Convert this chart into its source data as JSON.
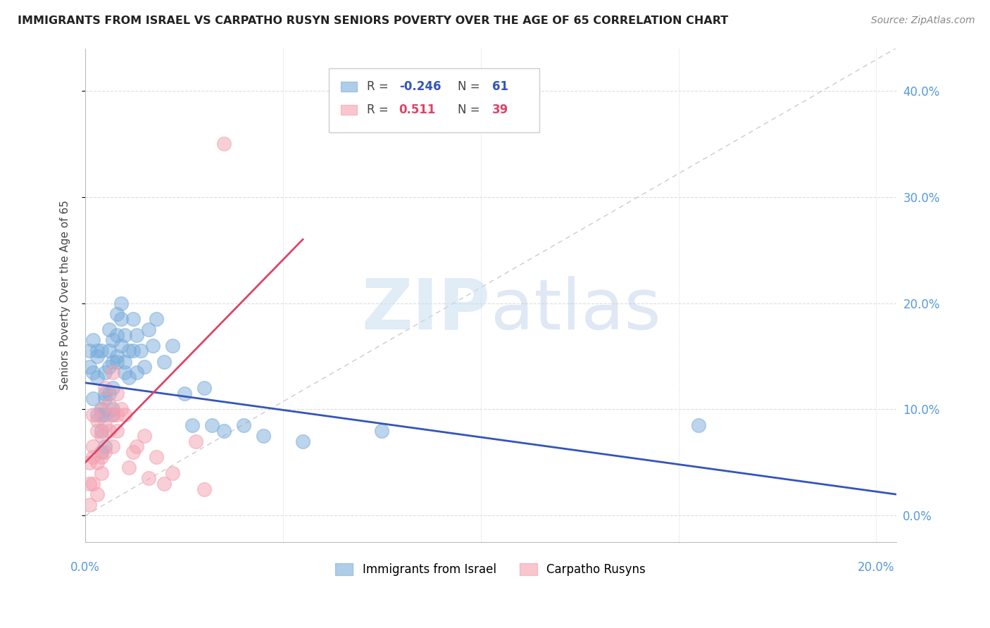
{
  "title": "IMMIGRANTS FROM ISRAEL VS CARPATHO RUSYN SENIORS POVERTY OVER THE AGE OF 65 CORRELATION CHART",
  "source": "Source: ZipAtlas.com",
  "ylabel": "Seniors Poverty Over the Age of 65",
  "legend_label_blue": "Immigrants from Israel",
  "legend_label_pink": "Carpatho Rusyns",
  "watermark_zip": "ZIP",
  "watermark_atlas": "atlas",
  "background_color": "#ffffff",
  "blue_color": "#7aaddb",
  "pink_color": "#f5a0b0",
  "blue_line_color": "#3355bb",
  "pink_line_color": "#dd4466",
  "diag_line_color": "#cccccc",
  "grid_color": "#dddddd",
  "title_color": "#222222",
  "source_color": "#888888",
  "axis_label_color": "#5599dd",
  "blue_scatter": {
    "x": [
      0.001,
      0.001,
      0.002,
      0.002,
      0.002,
      0.003,
      0.003,
      0.003,
      0.003,
      0.004,
      0.004,
      0.004,
      0.004,
      0.004,
      0.005,
      0.005,
      0.005,
      0.005,
      0.005,
      0.006,
      0.006,
      0.006,
      0.006,
      0.007,
      0.007,
      0.007,
      0.007,
      0.007,
      0.008,
      0.008,
      0.008,
      0.008,
      0.009,
      0.009,
      0.009,
      0.01,
      0.01,
      0.01,
      0.011,
      0.011,
      0.012,
      0.012,
      0.013,
      0.013,
      0.014,
      0.015,
      0.016,
      0.017,
      0.018,
      0.02,
      0.022,
      0.025,
      0.027,
      0.03,
      0.032,
      0.035,
      0.04,
      0.045,
      0.055,
      0.075,
      0.155
    ],
    "y": [
      0.155,
      0.14,
      0.165,
      0.135,
      0.11,
      0.155,
      0.15,
      0.13,
      0.095,
      0.155,
      0.1,
      0.08,
      0.095,
      0.06,
      0.135,
      0.11,
      0.115,
      0.065,
      0.095,
      0.175,
      0.14,
      0.115,
      0.155,
      0.165,
      0.145,
      0.12,
      0.1,
      0.095,
      0.19,
      0.17,
      0.15,
      0.145,
      0.2,
      0.185,
      0.16,
      0.145,
      0.17,
      0.135,
      0.155,
      0.13,
      0.185,
      0.155,
      0.17,
      0.135,
      0.155,
      0.14,
      0.175,
      0.16,
      0.185,
      0.145,
      0.16,
      0.115,
      0.085,
      0.12,
      0.085,
      0.08,
      0.085,
      0.075,
      0.07,
      0.08,
      0.085
    ]
  },
  "pink_scatter": {
    "x": [
      0.001,
      0.001,
      0.001,
      0.002,
      0.002,
      0.002,
      0.002,
      0.003,
      0.003,
      0.003,
      0.003,
      0.004,
      0.004,
      0.004,
      0.004,
      0.005,
      0.005,
      0.005,
      0.006,
      0.006,
      0.007,
      0.007,
      0.007,
      0.008,
      0.008,
      0.008,
      0.009,
      0.01,
      0.011,
      0.012,
      0.013,
      0.015,
      0.016,
      0.018,
      0.02,
      0.022,
      0.028,
      0.03,
      0.035
    ],
    "y": [
      0.05,
      0.03,
      0.01,
      0.095,
      0.065,
      0.055,
      0.03,
      0.09,
      0.08,
      0.05,
      0.02,
      0.1,
      0.075,
      0.055,
      0.04,
      0.12,
      0.085,
      0.06,
      0.105,
      0.08,
      0.135,
      0.095,
      0.065,
      0.115,
      0.095,
      0.08,
      0.1,
      0.095,
      0.045,
      0.06,
      0.065,
      0.075,
      0.035,
      0.055,
      0.03,
      0.04,
      0.07,
      0.025,
      0.35
    ]
  },
  "xlim": [
    0.0,
    0.205
  ],
  "ylim": [
    -0.025,
    0.44
  ],
  "xticks": [
    0.0,
    0.05,
    0.1,
    0.15,
    0.2
  ],
  "yticks": [
    0.0,
    0.1,
    0.2,
    0.3,
    0.4
  ],
  "ytick_labels_right": [
    "0.0%",
    "10.0%",
    "20.0%",
    "30.0%",
    "40.0%"
  ],
  "blue_line_x": [
    0.0,
    0.205
  ],
  "blue_line_y": [
    0.125,
    0.02
  ],
  "pink_line_x": [
    0.0,
    0.055
  ],
  "pink_line_y": [
    0.05,
    0.26
  ]
}
